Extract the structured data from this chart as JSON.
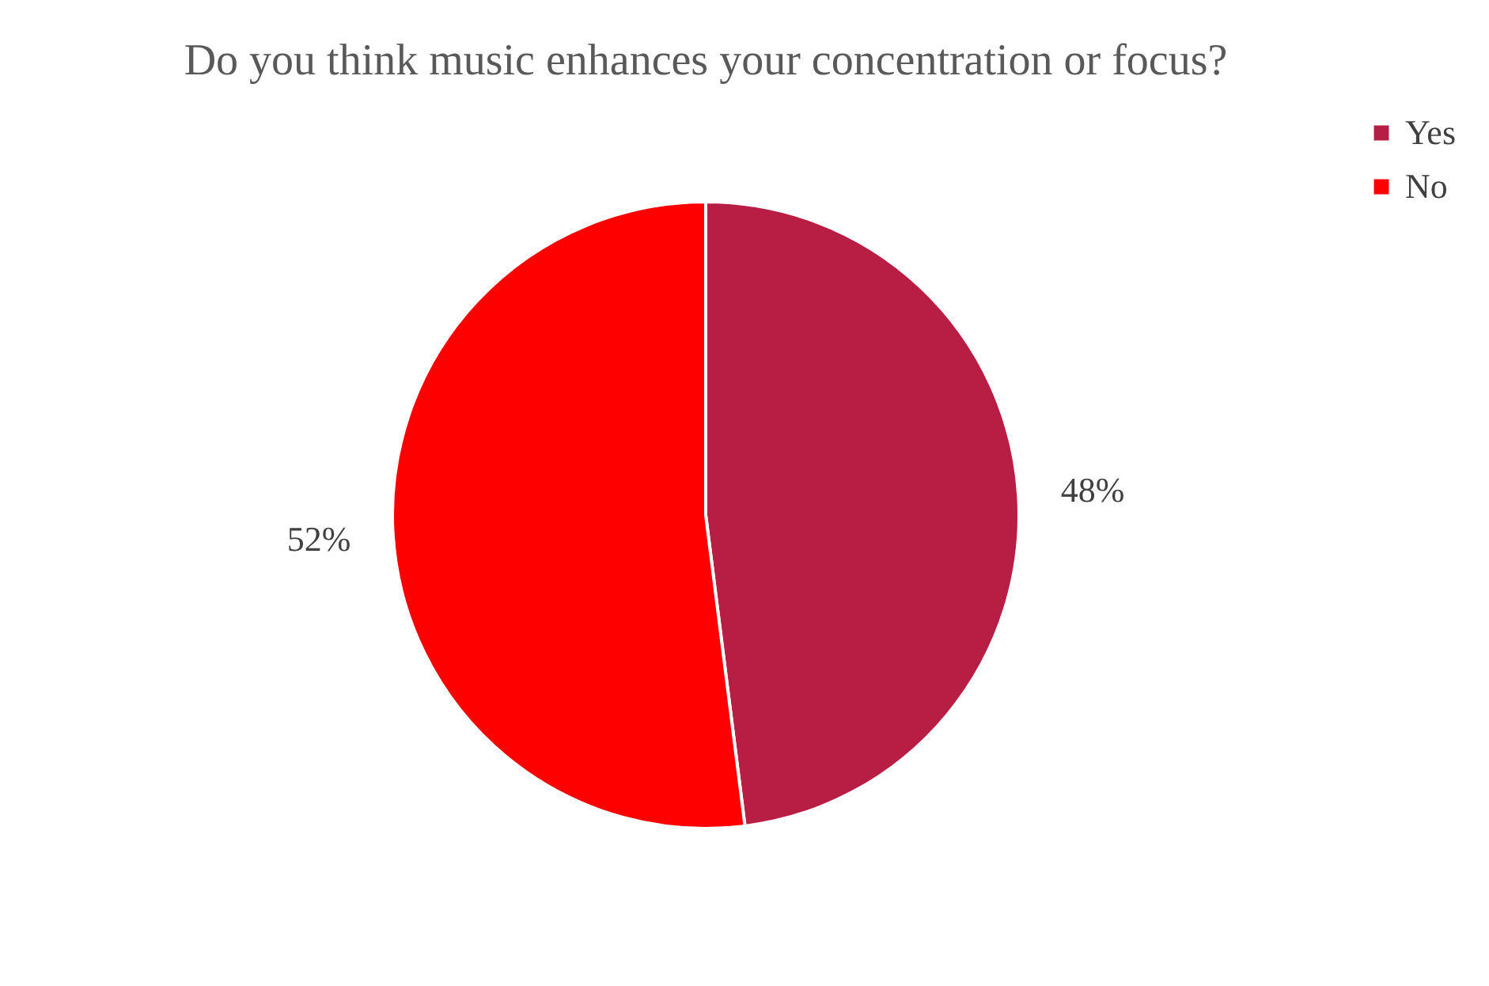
{
  "chart_data": {
    "type": "pie",
    "title": "Do you think music enhances your concentration or focus?",
    "categories": [
      "Yes",
      "No"
    ],
    "values": [
      48,
      52
    ],
    "colors": [
      "#b81e43",
      "#ff0000"
    ],
    "value_labels": [
      "48%",
      "52%"
    ],
    "legend": "right"
  }
}
